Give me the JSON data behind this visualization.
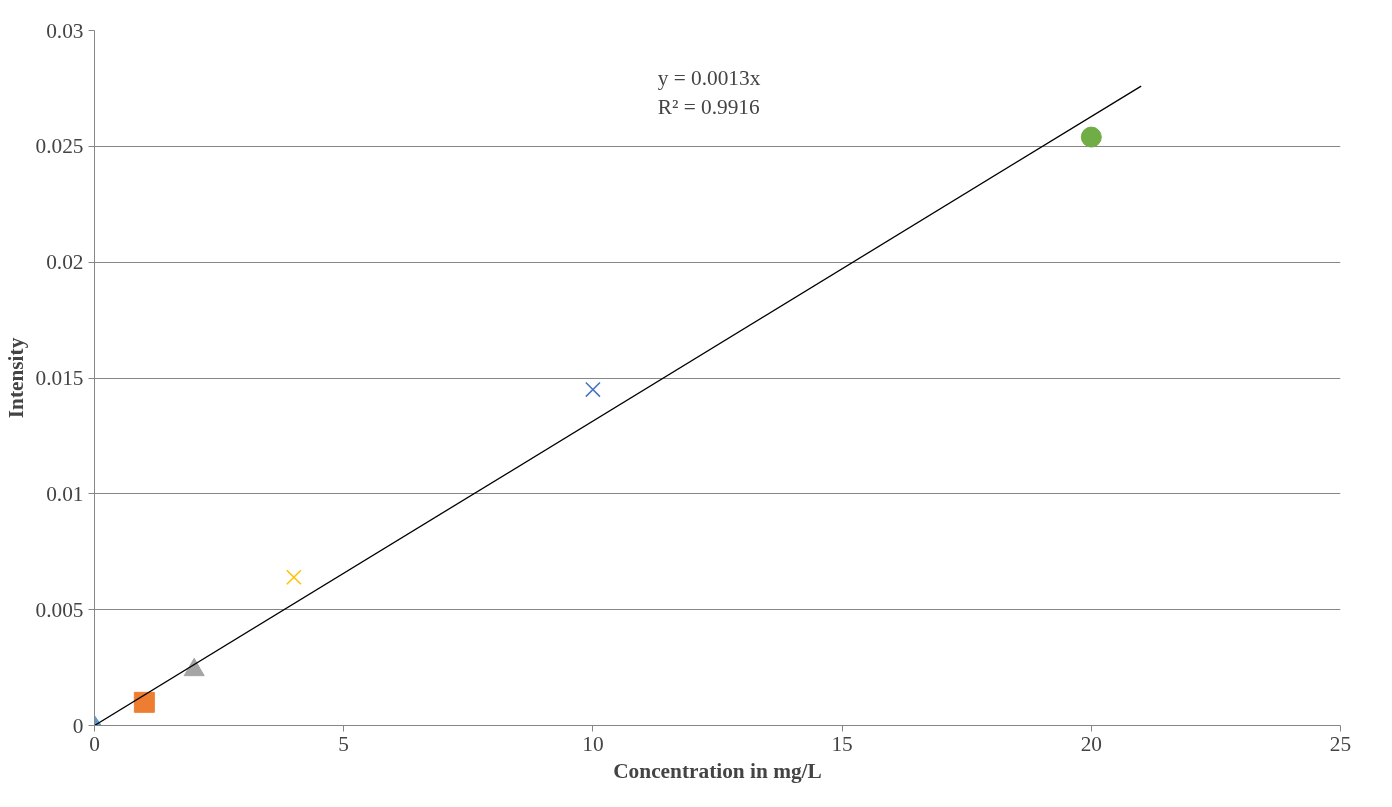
{
  "chart_data": {
    "type": "scatter",
    "xlabel": "Concentration in mg/L",
    "ylabel": "Intensity",
    "xlim": [
      0,
      25
    ],
    "xticks": [
      0,
      5,
      10,
      15,
      20,
      25
    ],
    "ylim": [
      0,
      0.03
    ],
    "yticks": [
      0,
      0.005,
      0.01,
      0.015,
      0.02,
      0.025,
      0.03
    ],
    "grid": "y",
    "series": [
      {
        "color": "#5b9bd5",
        "marker": "diamond",
        "x": [
          0
        ],
        "values": [
          0
        ]
      },
      {
        "color": "#ed7d31",
        "marker": "square",
        "x": [
          1
        ],
        "values": [
          0.001
        ]
      },
      {
        "color": "#a5a5a5",
        "marker": "triangle",
        "x": [
          2
        ],
        "values": [
          0.0024
        ]
      },
      {
        "color": "#ffc000",
        "marker": "cross",
        "x": [
          4
        ],
        "values": [
          0.0064
        ]
      },
      {
        "color": "#4472c4",
        "marker": "cross",
        "x": [
          10
        ],
        "values": [
          0.0145
        ]
      },
      {
        "color": "#70ad47",
        "marker": "circle",
        "x": [
          20
        ],
        "values": [
          0.0254
        ]
      },
      {
        "type": "line",
        "color": "#000000",
        "marker": "none",
        "line_style": "solid",
        "x": [
          0,
          21
        ],
        "values": [
          0,
          0.0276
        ]
      }
    ],
    "annotations": [
      "y = 0.0013x\nR² = 0.9916"
    ]
  }
}
